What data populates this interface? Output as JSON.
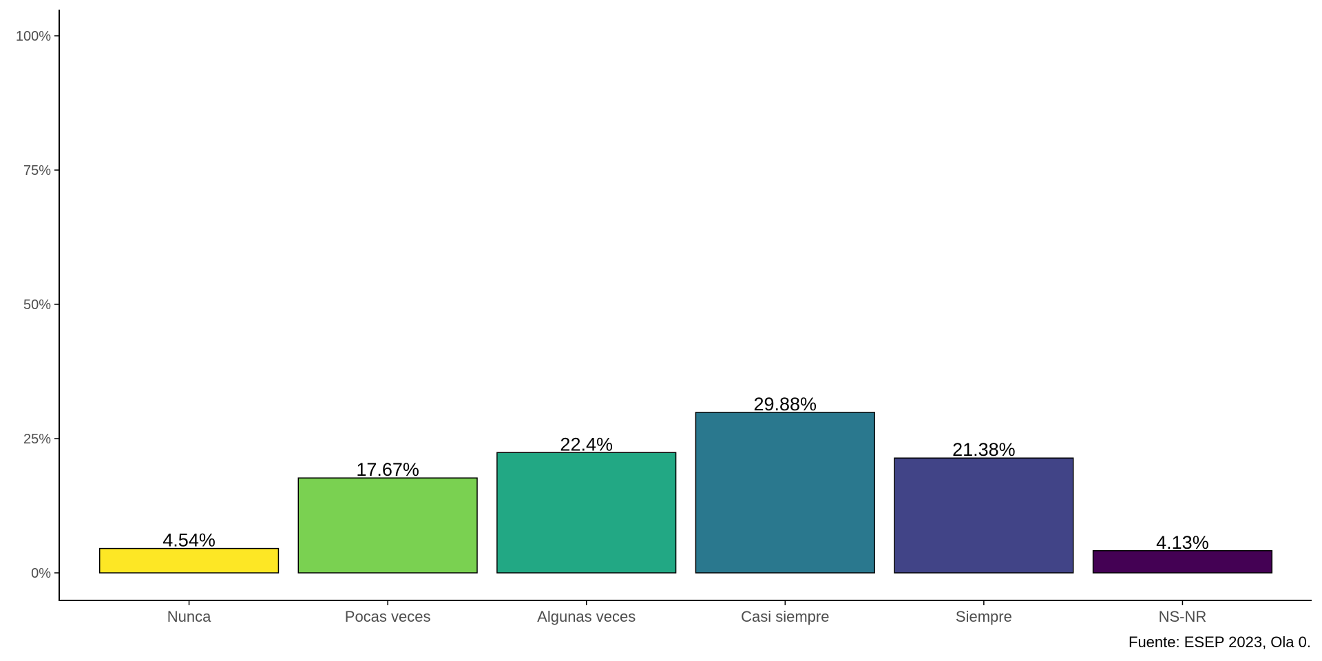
{
  "chart_data": {
    "type": "bar",
    "categories": [
      "Nunca",
      "Pocas veces",
      "Algunas veces",
      "Casi siempre",
      "Siempre",
      "NS-NR"
    ],
    "values": [
      4.54,
      17.67,
      22.4,
      29.88,
      21.38,
      4.13
    ],
    "value_labels": [
      "4.54%",
      "17.67%",
      "22.4%",
      "29.88%",
      "21.38%",
      "4.13%"
    ],
    "colors": [
      "#fde725",
      "#7ad151",
      "#22a884",
      "#2a788e",
      "#414487",
      "#440154"
    ],
    "ylim": [
      0,
      100
    ],
    "yticks": [
      0,
      25,
      50,
      75,
      100
    ],
    "ytick_labels": [
      "0%",
      "25%",
      "50%",
      "75%",
      "100%"
    ],
    "title": "",
    "xlabel": "",
    "ylabel": "",
    "grid": false,
    "legend": "none",
    "caption": "Fuente: ESEP 2023, Ola 0."
  }
}
